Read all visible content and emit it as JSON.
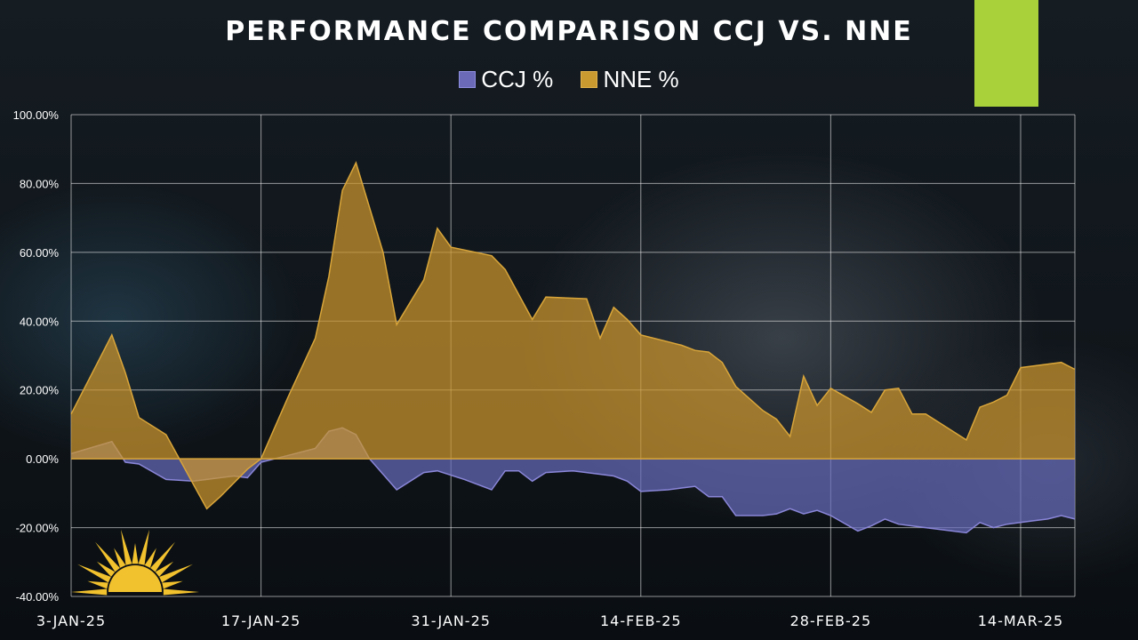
{
  "chart_data": {
    "type": "area",
    "title": "PERFORMANCE COMPARISON CCJ VS. NNE",
    "ylim": [
      -40,
      100
    ],
    "y_ticks": [
      "100.00%",
      "80.00%",
      "60.00%",
      "40.00%",
      "20.00%",
      "0.00%",
      "-20.00%",
      "-40.00%"
    ],
    "y_tick_values": [
      100,
      80,
      60,
      40,
      20,
      0,
      -20,
      -40
    ],
    "x_tick_labels": [
      "3-JAN-25",
      "17-JAN-25",
      "31-JAN-25",
      "14-FEB-25",
      "28-FEB-25",
      "14-MAR-25"
    ],
    "x_tick_days": [
      0,
      14,
      28,
      42,
      56,
      70
    ],
    "x_range_days": [
      0,
      74
    ],
    "grid": true,
    "legend_position": "top-center",
    "series": [
      {
        "name": "CCJ %",
        "color": "#6a6ab8",
        "points": [
          [
            0,
            1.5
          ],
          [
            3,
            5
          ],
          [
            4,
            -1
          ],
          [
            5,
            -1.5
          ],
          [
            7,
            -6
          ],
          [
            9,
            -6.5
          ],
          [
            10,
            -6
          ],
          [
            12,
            -5
          ],
          [
            13,
            -5.5
          ],
          [
            14,
            -1
          ],
          [
            16,
            1
          ],
          [
            18,
            3
          ],
          [
            19,
            8
          ],
          [
            20,
            9
          ],
          [
            21,
            7
          ],
          [
            22,
            0
          ],
          [
            24,
            -9
          ],
          [
            26,
            -4
          ],
          [
            27,
            -3.5
          ],
          [
            29,
            -6
          ],
          [
            31,
            -9
          ],
          [
            32,
            -3.5
          ],
          [
            33,
            -3.5
          ],
          [
            34,
            -6.5
          ],
          [
            35,
            -4
          ],
          [
            37,
            -3.5
          ],
          [
            38,
            -4
          ],
          [
            40,
            -5
          ],
          [
            41,
            -6.5
          ],
          [
            42,
            -9.5
          ],
          [
            44,
            -9
          ],
          [
            45,
            -8.5
          ],
          [
            46,
            -8
          ],
          [
            47,
            -11
          ],
          [
            48,
            -11
          ],
          [
            49,
            -16.5
          ],
          [
            51,
            -16.5
          ],
          [
            52,
            -16
          ],
          [
            53,
            -14.5
          ],
          [
            54,
            -16
          ],
          [
            55,
            -15
          ],
          [
            56,
            -16.5
          ],
          [
            58,
            -21
          ],
          [
            59,
            -19.5
          ],
          [
            60,
            -17.5
          ],
          [
            61,
            -19
          ],
          [
            63,
            -20
          ],
          [
            66,
            -21.5
          ],
          [
            67,
            -18.5
          ],
          [
            68,
            -20
          ],
          [
            69,
            -19
          ],
          [
            71,
            -18
          ],
          [
            72,
            -17.5
          ],
          [
            73,
            -16.5
          ],
          [
            74,
            -17.5
          ]
        ]
      },
      {
        "name": "NNE %",
        "color": "#c89a30",
        "points": [
          [
            0,
            13
          ],
          [
            3,
            36
          ],
          [
            4,
            25
          ],
          [
            5,
            12
          ],
          [
            7,
            7
          ],
          [
            10,
            -14.5
          ],
          [
            11,
            -11
          ],
          [
            13,
            -3
          ],
          [
            14,
            0
          ],
          [
            16,
            18
          ],
          [
            18,
            35
          ],
          [
            19,
            53
          ],
          [
            20,
            78
          ],
          [
            21,
            86
          ],
          [
            23,
            60
          ],
          [
            24,
            39
          ],
          [
            26,
            52
          ],
          [
            27,
            67
          ],
          [
            28,
            61.5
          ],
          [
            31,
            59
          ],
          [
            32,
            55
          ],
          [
            34,
            40.5
          ],
          [
            35,
            47
          ],
          [
            38,
            46.5
          ],
          [
            39,
            35
          ],
          [
            40,
            44
          ],
          [
            41,
            40.5
          ],
          [
            42,
            36
          ],
          [
            45,
            33
          ],
          [
            46,
            31.5
          ],
          [
            47,
            31
          ],
          [
            48,
            28
          ],
          [
            49,
            21
          ],
          [
            51,
            14
          ],
          [
            52,
            11.5
          ],
          [
            53,
            6.5
          ],
          [
            54,
            24
          ],
          [
            55,
            15.5
          ],
          [
            56,
            20.5
          ],
          [
            58,
            16
          ],
          [
            59,
            13.5
          ],
          [
            60,
            20
          ],
          [
            61,
            20.5
          ],
          [
            62,
            13
          ],
          [
            63,
            13
          ],
          [
            66,
            5.5
          ],
          [
            67,
            15
          ],
          [
            68,
            16.5
          ],
          [
            69,
            18.5
          ],
          [
            70,
            26.5
          ],
          [
            73,
            28
          ],
          [
            74,
            26
          ]
        ]
      }
    ]
  },
  "legend": {
    "ccj_label": "CCJ %",
    "nne_label": "NNE %"
  }
}
